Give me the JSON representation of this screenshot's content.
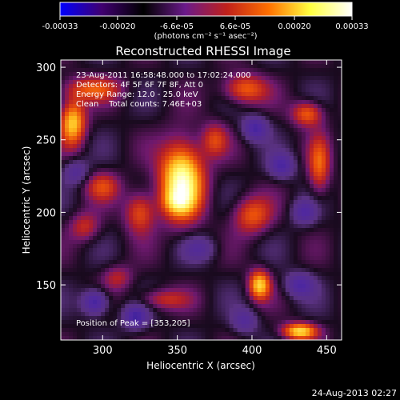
{
  "chart_data": {
    "type": "heatmap",
    "title": "Reconstructed RHESSI Image",
    "xlabel": "Heliocentric X (arcsec)",
    "ylabel": "Heliocentric Y (arcsec)",
    "xlim": [
      272,
      460
    ],
    "ylim": [
      112,
      305
    ],
    "x_ticks": [
      300,
      350,
      400,
      450
    ],
    "y_ticks": [
      150,
      200,
      250,
      300
    ],
    "x_tick_labels": [
      "300",
      "350",
      "400",
      "450"
    ],
    "y_tick_labels": [
      "150",
      "200",
      "250",
      "300"
    ],
    "colorbar": {
      "range": [
        -0.00033,
        0.00033
      ],
      "tick_values": [
        -0.00033,
        -0.0002,
        -6.6e-05,
        6.6e-05,
        0.0002,
        0.00033
      ],
      "tick_labels": [
        "-0.00033",
        "-0.00020",
        "-6.6e-05",
        "6.6e-05",
        "0.00020",
        "0.00033"
      ],
      "unit_label": "(photons cm⁻² s⁻¹ asec⁻²)",
      "colors": [
        "#0000ff",
        "#400070",
        "#000000",
        "#6a1a8a",
        "#c0201a",
        "#ff7000",
        "#ffff40",
        "#ffffff"
      ]
    },
    "annotations": [
      "23-Aug-2011 16:58:48.000 to 17:02:24.000",
      "Detectors: 4F 5F 6F 7F 8F, Att 0",
      "Energy Range: 12.0 - 25.0 keV",
      "Clean    Total counts: 7.46E+03",
      "Position of Peak = [353,205]"
    ],
    "peak": {
      "x": 353,
      "y": 205
    },
    "sources": [
      {
        "x": 353,
        "y": 222,
        "sx": 10,
        "sy": 18,
        "a": 1.1
      },
      {
        "x": 350,
        "y": 207,
        "sx": 7,
        "sy": 6,
        "a": 0.35
      },
      {
        "x": 280,
        "y": 262,
        "sx": 6,
        "sy": 11,
        "a": 0.8
      },
      {
        "x": 293,
        "y": 285,
        "sx": 14,
        "sy": 6,
        "a": 0.45
      },
      {
        "x": 395,
        "y": 285,
        "sx": 10,
        "sy": 7,
        "a": 0.55
      },
      {
        "x": 437,
        "y": 268,
        "sx": 7,
        "sy": 6,
        "a": 0.55
      },
      {
        "x": 445,
        "y": 232,
        "sx": 5,
        "sy": 14,
        "a": 0.5
      },
      {
        "x": 325,
        "y": 200,
        "sx": 7,
        "sy": 10,
        "a": 0.5
      },
      {
        "x": 400,
        "y": 198,
        "sx": 9,
        "sy": 9,
        "a": 0.5
      },
      {
        "x": 300,
        "y": 218,
        "sx": 8,
        "sy": 7,
        "a": 0.4
      },
      {
        "x": 375,
        "y": 250,
        "sx": 6,
        "sy": 8,
        "a": 0.4
      },
      {
        "x": 405,
        "y": 150,
        "sx": 5,
        "sy": 7,
        "a": 0.8
      },
      {
        "x": 432,
        "y": 118,
        "sx": 8,
        "sy": 4,
        "a": 0.85
      },
      {
        "x": 340,
        "y": 140,
        "sx": 12,
        "sy": 5,
        "a": 0.35
      },
      {
        "x": 288,
        "y": 190,
        "sx": 7,
        "sy": 7,
        "a": 0.35
      },
      {
        "x": 310,
        "y": 155,
        "sx": 7,
        "sy": 6,
        "a": 0.3
      },
      {
        "x": 295,
        "y": 138,
        "sx": 6,
        "sy": 6,
        "a": -0.6
      },
      {
        "x": 322,
        "y": 128,
        "sx": 6,
        "sy": 6,
        "a": -0.5
      },
      {
        "x": 402,
        "y": 258,
        "sx": 6,
        "sy": 6,
        "a": -0.5
      },
      {
        "x": 420,
        "y": 232,
        "sx": 6,
        "sy": 6,
        "a": -0.45
      },
      {
        "x": 435,
        "y": 200,
        "sx": 6,
        "sy": 6,
        "a": -0.4
      },
      {
        "x": 432,
        "y": 150,
        "sx": 7,
        "sy": 6,
        "a": -0.45
      },
      {
        "x": 395,
        "y": 125,
        "sx": 6,
        "sy": 6,
        "a": -0.35
      },
      {
        "x": 282,
        "y": 228,
        "sx": 6,
        "sy": 6,
        "a": -0.35
      },
      {
        "x": 365,
        "y": 175,
        "sx": 8,
        "sy": 6,
        "a": -0.3
      }
    ]
  },
  "footer": {
    "timestamp": "24-Aug-2013 02:27"
  }
}
